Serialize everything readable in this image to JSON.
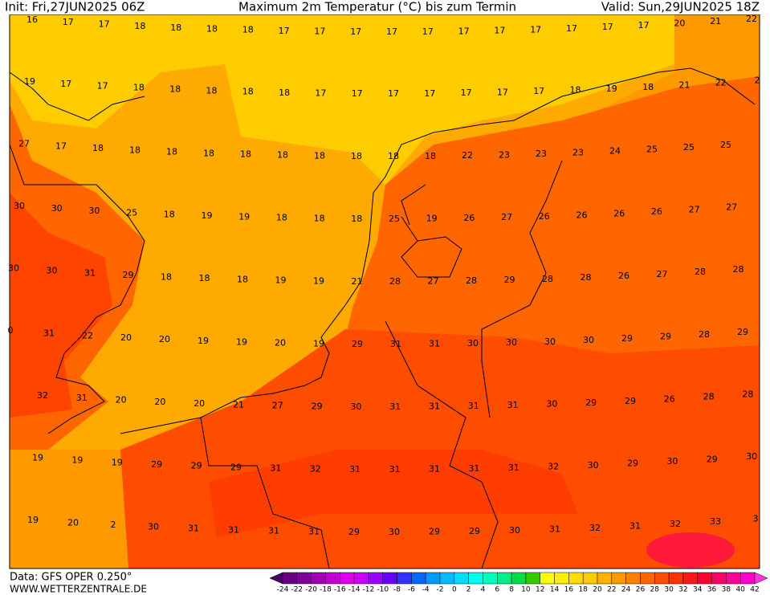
{
  "header": {
    "init": "Init: Fri,27JUN2025 06Z",
    "title": "Maximum 2m Temperatur (°C) bis zum Termin",
    "valid": "Valid: Sun,29JUN2025 18Z"
  },
  "map": {
    "values": [
      [
        16,
        17,
        17,
        18,
        18,
        18,
        18,
        17,
        17,
        17,
        17,
        17,
        17,
        17,
        17,
        17,
        17,
        17,
        20,
        21,
        22
      ],
      [
        19,
        17,
        17,
        18,
        18,
        18,
        18,
        18,
        17,
        17,
        17,
        17,
        17,
        17,
        17,
        18,
        19,
        18,
        21,
        22,
        2
      ],
      [
        27,
        17,
        18,
        18,
        18,
        18,
        18,
        18,
        18,
        18,
        18,
        18,
        22,
        23,
        23,
        23,
        24,
        25,
        25,
        25
      ],
      [
        30,
        30,
        30,
        25,
        18,
        19,
        19,
        18,
        18,
        18,
        25,
        19,
        26,
        27,
        26,
        26,
        26,
        26,
        27,
        27
      ],
      [
        30,
        30,
        31,
        29,
        18,
        18,
        18,
        19,
        19,
        21,
        28,
        27,
        28,
        29,
        28,
        28,
        26,
        27,
        28,
        28
      ],
      [
        0,
        31,
        22,
        20,
        20,
        19,
        19,
        20,
        19,
        29,
        31,
        31,
        30,
        30,
        30,
        30,
        29,
        29,
        28,
        29
      ],
      [
        32,
        31,
        20,
        20,
        20,
        21,
        27,
        29,
        30,
        31,
        31,
        31,
        31,
        30,
        29,
        29,
        26,
        28,
        28
      ],
      [
        19,
        19,
        19,
        29,
        29,
        29,
        31,
        32,
        31,
        31,
        31,
        31,
        31,
        32,
        30,
        29,
        30,
        29,
        30
      ],
      [
        19,
        20,
        2,
        30,
        31,
        31,
        31,
        31,
        29,
        30,
        29,
        29,
        30,
        31,
        32,
        31,
        32,
        33,
        3
      ]
    ]
  },
  "colorbar": {
    "ticks": [
      -24,
      -22,
      -20,
      -18,
      -16,
      -14,
      -12,
      -10,
      -8,
      -6,
      -4,
      -2,
      0,
      2,
      4,
      6,
      8,
      10,
      12,
      14,
      16,
      18,
      20,
      22,
      24,
      26,
      28,
      30,
      32,
      34,
      36,
      38,
      40,
      42
    ],
    "colors": [
      "#4b0066",
      "#660080",
      "#800099",
      "#a000b3",
      "#c000d0",
      "#dd00e8",
      "#cc00ff",
      "#9900ff",
      "#6600ff",
      "#3333ff",
      "#0066ff",
      "#0099ff",
      "#00bbff",
      "#00ddff",
      "#00ffee",
      "#00ffbb",
      "#00ee88",
      "#00dd44",
      "#33cc00",
      "#ffff00",
      "#ffee00",
      "#ffdd00",
      "#ffcc00",
      "#ffb300",
      "#ff9900",
      "#ff8000",
      "#ff6600",
      "#ff4d00",
      "#ff3300",
      "#ff1a1a",
      "#ff0033",
      "#ff0066",
      "#ff0099",
      "#ff00cc",
      "#ff33dd"
    ]
  },
  "footer": {
    "source": "Data: GFS OPER 0.250°",
    "website": "WWW.WETTERZENTRALE.DE"
  }
}
